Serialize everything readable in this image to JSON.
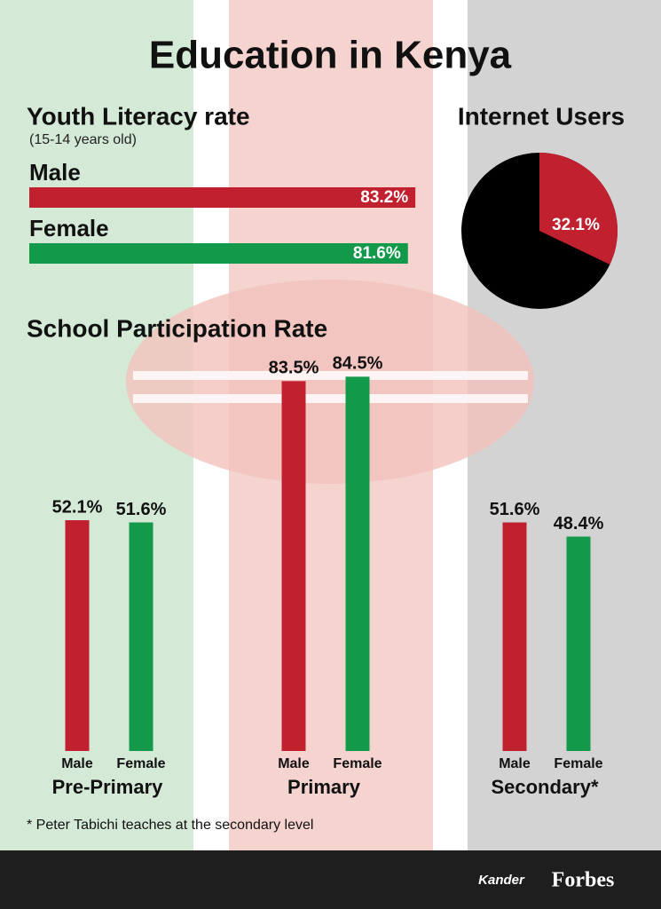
{
  "title": "Education in Kenya",
  "logos": [
    "Kander",
    "Forbes"
  ],
  "chart_data": [
    {
      "type": "bar",
      "orientation": "horizontal",
      "title": "Youth Literacy rate",
      "subtitle": "(15-14 years old)",
      "categories": [
        "Male",
        "Female"
      ],
      "values": [
        83.2,
        81.6
      ],
      "value_labels": [
        "83.2%",
        "81.6%"
      ],
      "colors": [
        "#c1202f",
        "#12994a"
      ]
    },
    {
      "type": "pie",
      "title": "Internet Users",
      "values": [
        32.1
      ],
      "value_labels": [
        "32.1%"
      ],
      "color": "#c1202f"
    },
    {
      "type": "bar",
      "orientation": "vertical",
      "title": "School Participation Rate",
      "categories": [
        "Pre-Primary",
        "Primary",
        "Secondary*"
      ],
      "series": [
        {
          "name": "Male",
          "color": "#c1202f",
          "values": [
            52.1,
            83.5,
            51.6
          ],
          "value_labels": [
            "52.1%",
            "83.5%",
            "51.6%"
          ]
        },
        {
          "name": "Female",
          "color": "#12994a",
          "values": [
            51.6,
            84.5,
            48.4
          ],
          "value_labels": [
            "51.6%",
            "84.5%",
            "48.4%"
          ]
        }
      ],
      "footnote": "* Peter Tabichi teaches at the secondary level"
    }
  ]
}
